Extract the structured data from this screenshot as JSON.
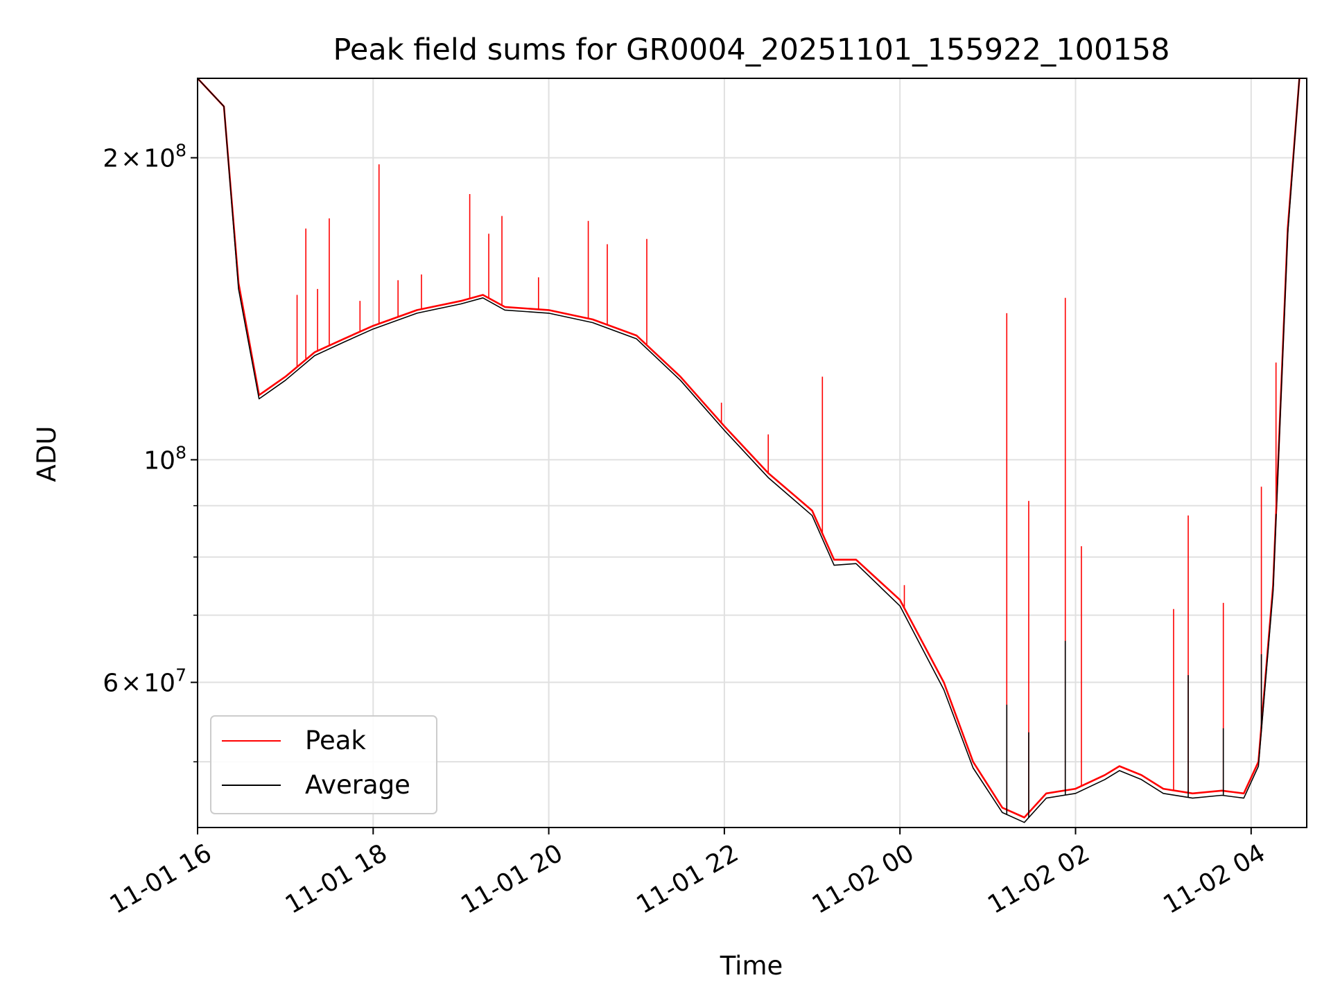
{
  "chart_data": {
    "type": "line",
    "title": "Peak field sums for GR0004_20251101_155922_100158",
    "xlabel": "Time",
    "ylabel": "ADU",
    "x_tick_labels": [
      "11-01 16",
      "11-01 18",
      "11-01 20",
      "11-01 22",
      "11-02 00",
      "11-02 02",
      "11-02 04"
    ],
    "x_ticks": [
      "2025-11-01T16:00",
      "2025-11-01T18:00",
      "2025-11-01T20:00",
      "2025-11-01T22:00",
      "2025-11-02T00:00",
      "2025-11-02T02:00",
      "2025-11-02T04:00"
    ],
    "xlim": [
      "2025-11-01T16:00",
      "2025-11-02T04:38"
    ],
    "y_scale": "log",
    "ylim": [
      43000000,
      240000000
    ],
    "y_major_ticks": [
      {
        "value": 200000000,
        "mantissa": "2",
        "times": "×",
        "base": "10",
        "exp": "8"
      },
      {
        "value": 100000000,
        "mantissa": "",
        "times": "",
        "base": "10",
        "exp": "8"
      },
      {
        "value": 60000000,
        "mantissa": "6",
        "times": "×",
        "base": "10",
        "exp": "7"
      }
    ],
    "y_minor_ticks": [
      50000000,
      70000000,
      80000000,
      90000000
    ],
    "grid": true,
    "legend": {
      "placement": "bottom-left"
    },
    "series": [
      {
        "name": "Peak",
        "color": "#ff0000",
        "x": [
          "2025-11-01T16:00",
          "2025-11-01T16:18",
          "2025-11-01T16:28",
          "2025-11-01T16:42",
          "2025-11-01T17:00",
          "2025-11-01T17:20",
          "2025-11-01T17:40",
          "2025-11-01T18:00",
          "2025-11-01T18:30",
          "2025-11-01T19:00",
          "2025-11-01T19:15",
          "2025-11-01T19:30",
          "2025-11-01T20:00",
          "2025-11-01T20:30",
          "2025-11-01T21:00",
          "2025-11-01T21:30",
          "2025-11-01T22:00",
          "2025-11-01T22:30",
          "2025-11-01T23:00",
          "2025-11-01T23:15",
          "2025-11-01T23:30",
          "2025-11-02T00:00",
          "2025-11-02T00:30",
          "2025-11-02T00:50",
          "2025-11-02T01:10",
          "2025-11-02T01:25",
          "2025-11-02T01:40",
          "2025-11-02T02:00",
          "2025-11-02T02:20",
          "2025-11-02T02:30",
          "2025-11-02T02:45",
          "2025-11-02T03:00",
          "2025-11-02T03:20",
          "2025-11-02T03:40",
          "2025-11-02T03:55",
          "2025-11-02T04:05",
          "2025-11-02T04:15",
          "2025-11-02T04:25",
          "2025-11-02T04:33"
        ],
        "values": [
          240000000,
          225000000,
          150000000,
          116000000,
          121000000,
          128000000,
          132000000,
          136000000,
          141000000,
          144000000,
          146000000,
          142000000,
          141000000,
          138000000,
          133000000,
          121000000,
          108000000,
          97000000,
          89000000,
          79500000,
          79500000,
          72500000,
          60000000,
          50000000,
          45000000,
          44000000,
          46500000,
          47000000,
          48500000,
          49500000,
          48500000,
          47000000,
          46500000,
          46800000,
          46500000,
          50000000,
          75000000,
          170000000,
          240000000
        ],
        "spikes": [
          {
            "x": "2025-11-01T17:08",
            "value": 146000000
          },
          {
            "x": "2025-11-01T17:14",
            "value": 170000000
          },
          {
            "x": "2025-11-01T17:22",
            "value": 148000000
          },
          {
            "x": "2025-11-01T17:30",
            "value": 174000000
          },
          {
            "x": "2025-11-01T17:51",
            "value": 144000000
          },
          {
            "x": "2025-11-01T18:04",
            "value": 197000000
          },
          {
            "x": "2025-11-01T18:17",
            "value": 151000000
          },
          {
            "x": "2025-11-01T18:33",
            "value": 153000000
          },
          {
            "x": "2025-11-01T19:06",
            "value": 184000000
          },
          {
            "x": "2025-11-01T19:19",
            "value": 168000000
          },
          {
            "x": "2025-11-01T19:28",
            "value": 175000000
          },
          {
            "x": "2025-11-01T19:53",
            "value": 152000000
          },
          {
            "x": "2025-11-01T20:27",
            "value": 173000000
          },
          {
            "x": "2025-11-01T20:40",
            "value": 164000000
          },
          {
            "x": "2025-11-01T21:07",
            "value": 166000000
          },
          {
            "x": "2025-11-01T21:58",
            "value": 114000000
          },
          {
            "x": "2025-11-01T22:30",
            "value": 106000000
          },
          {
            "x": "2025-11-01T23:07",
            "value": 121000000
          },
          {
            "x": "2025-11-02T00:03",
            "value": 75000000
          },
          {
            "x": "2025-11-02T01:13",
            "value": 140000000
          },
          {
            "x": "2025-11-02T01:28",
            "value": 91000000
          },
          {
            "x": "2025-11-02T01:53",
            "value": 145000000
          },
          {
            "x": "2025-11-02T02:04",
            "value": 82000000
          },
          {
            "x": "2025-11-02T03:07",
            "value": 71000000
          },
          {
            "x": "2025-11-02T03:17",
            "value": 88000000
          },
          {
            "x": "2025-11-02T03:41",
            "value": 72000000
          },
          {
            "x": "2025-11-02T04:07",
            "value": 94000000
          },
          {
            "x": "2025-11-02T04:17",
            "value": 125000000
          }
        ]
      },
      {
        "name": "Average",
        "color": "#000000",
        "x": [
          "2025-11-01T16:00",
          "2025-11-01T16:18",
          "2025-11-01T16:28",
          "2025-11-01T16:42",
          "2025-11-01T17:00",
          "2025-11-01T17:20",
          "2025-11-01T17:40",
          "2025-11-01T18:00",
          "2025-11-01T18:30",
          "2025-11-01T19:00",
          "2025-11-01T19:15",
          "2025-11-01T19:30",
          "2025-11-01T20:00",
          "2025-11-01T20:30",
          "2025-11-01T21:00",
          "2025-11-01T21:30",
          "2025-11-01T22:00",
          "2025-11-01T22:30",
          "2025-11-01T23:00",
          "2025-11-01T23:15",
          "2025-11-01T23:30",
          "2025-11-02T00:00",
          "2025-11-02T00:30",
          "2025-11-02T00:50",
          "2025-11-02T01:10",
          "2025-11-02T01:25",
          "2025-11-02T01:40",
          "2025-11-02T02:00",
          "2025-11-02T02:20",
          "2025-11-02T02:30",
          "2025-11-02T02:45",
          "2025-11-02T03:00",
          "2025-11-02T03:20",
          "2025-11-02T03:40",
          "2025-11-02T03:55",
          "2025-11-02T04:05",
          "2025-11-02T04:15",
          "2025-11-02T04:25",
          "2025-11-02T04:33"
        ],
        "values": [
          240000000,
          225000000,
          148000000,
          115000000,
          120000000,
          127000000,
          131000000,
          135000000,
          140000000,
          143000000,
          145000000,
          141000000,
          140000000,
          137000000,
          132000000,
          120000000,
          107000000,
          96000000,
          88000000,
          78500000,
          78800000,
          71500000,
          59000000,
          49300000,
          44500000,
          43500000,
          46000000,
          46500000,
          48000000,
          49000000,
          48000000,
          46500000,
          46000000,
          46300000,
          46000000,
          49500000,
          74000000,
          168000000,
          240000000
        ],
        "spikes": [
          {
            "x": "2025-11-02T01:13",
            "value": 57000000
          },
          {
            "x": "2025-11-02T01:28",
            "value": 53500000
          },
          {
            "x": "2025-11-02T01:53",
            "value": 66000000
          },
          {
            "x": "2025-11-02T03:17",
            "value": 61000000
          },
          {
            "x": "2025-11-02T03:41",
            "value": 54000000
          },
          {
            "x": "2025-11-02T04:07",
            "value": 64000000
          }
        ]
      }
    ]
  }
}
